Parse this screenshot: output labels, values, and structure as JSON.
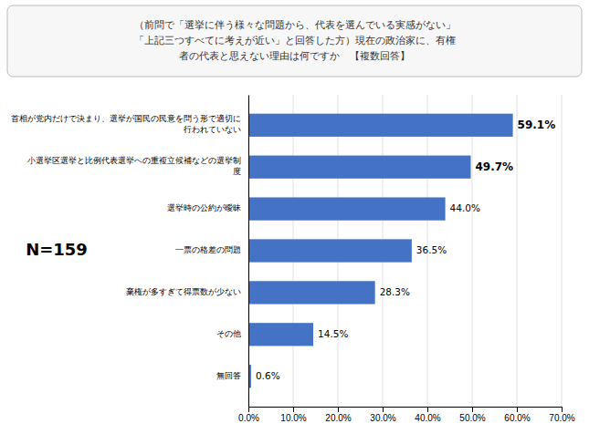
{
  "chart_data": {
    "type": "bar",
    "orientation": "horizontal",
    "title": "（前問で「選挙に伴う様々な問題から、代表を選んでいる実感がない」\n「上記三つすべてに考えが近い」と回答した方）現在の政治家に、有権\n者の代表と思えない理由は何ですか　【複数回答】",
    "categories": [
      "首相が党内だけで決まり、選挙が国民の民意を問う形で適切に\n行われていない",
      "小選挙区選挙と比例代表選挙への重複立候補などの選挙制\n度",
      "選挙時の公約が曖昧",
      "一票の格差の問題",
      "棄権が多すぎて得票数が少ない",
      "その他",
      "無回答"
    ],
    "values": [
      59.1,
      49.7,
      44.0,
      36.5,
      28.3,
      14.5,
      0.6
    ],
    "value_labels": [
      "59.1%",
      "49.7%",
      "44.0%",
      "36.5%",
      "28.3%",
      "14.5%",
      "0.6%"
    ],
    "data_labels": true,
    "color": "#4472C4",
    "annotations": [
      "N=159"
    ],
    "xlim": [
      0,
      70
    ],
    "xticks": [
      {
        "value": 0,
        "label": "0.0%"
      },
      {
        "value": 10,
        "label": "10.0%"
      },
      {
        "value": 20,
        "label": "20.0%"
      },
      {
        "value": 30,
        "label": "30.0%"
      },
      {
        "value": 40,
        "label": "40.0%"
      },
      {
        "value": 50,
        "label": "50.0%"
      },
      {
        "value": 60,
        "label": "60.0%"
      },
      {
        "value": 70,
        "label": "70.0%"
      }
    ],
    "grid": true
  }
}
